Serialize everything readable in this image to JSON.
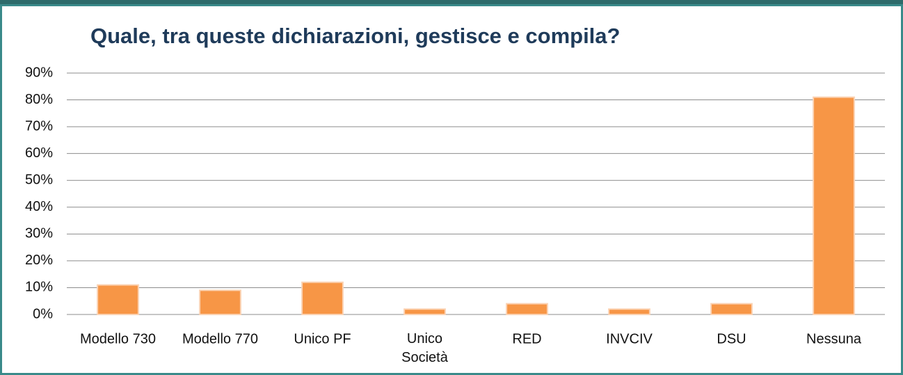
{
  "chart_data": {
    "type": "bar",
    "title": "Quale, tra queste dichiarazioni, gestisce e compila?",
    "categories": [
      "Modello 730",
      "Modello 770",
      "Unico PF",
      "Unico Società",
      "RED",
      "INVCIV",
      "DSU",
      "Nessuna"
    ],
    "values": [
      11,
      9,
      12,
      2,
      4,
      2,
      4,
      81
    ],
    "color": "#f79646",
    "ylim": [
      0,
      90
    ],
    "yticks": [
      {
        "value": 0,
        "label": "0%"
      },
      {
        "value": 10,
        "label": "10%"
      },
      {
        "value": 20,
        "label": "20%"
      },
      {
        "value": 30,
        "label": "30%"
      },
      {
        "value": 40,
        "label": "40%"
      },
      {
        "value": 50,
        "label": "50%"
      },
      {
        "value": 60,
        "label": "60%"
      },
      {
        "value": 70,
        "label": "70%"
      },
      {
        "value": 80,
        "label": "80%"
      },
      {
        "value": 90,
        "label": "90%"
      }
    ],
    "grid": true
  }
}
